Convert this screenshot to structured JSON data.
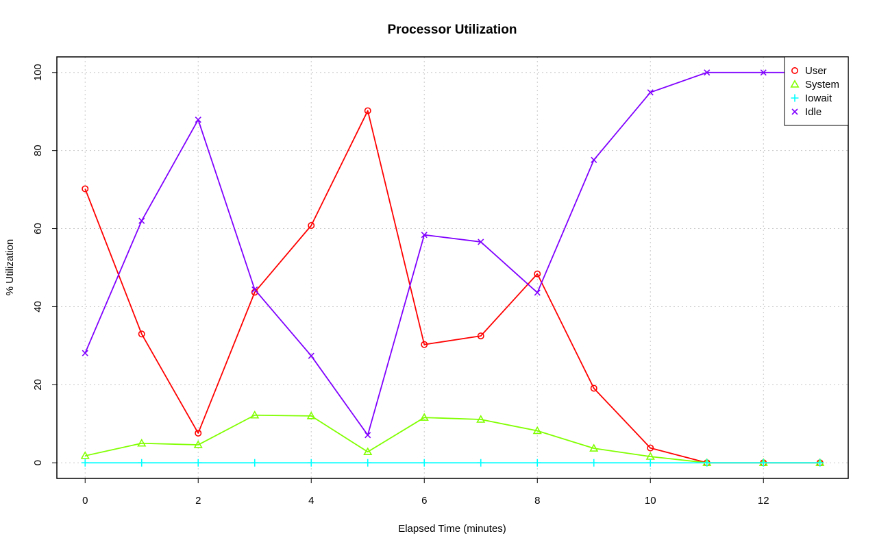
{
  "chart_data": {
    "type": "line",
    "title": "Processor Utilization",
    "xlabel": "Elapsed Time (minutes)",
    "ylabel": "% Utilization",
    "x": [
      0,
      1,
      2,
      3,
      4,
      5,
      6,
      7,
      8,
      9,
      10,
      11,
      12,
      13
    ],
    "xlim": [
      -0.5,
      13.5
    ],
    "ylim": [
      -4,
      104
    ],
    "xticks": [
      0,
      2,
      4,
      6,
      8,
      10,
      12
    ],
    "yticks": [
      0,
      20,
      40,
      60,
      80,
      100
    ],
    "grid": true,
    "legend_position": "top-right",
    "series": [
      {
        "name": "User",
        "color": "#ff0000",
        "marker": "circle",
        "values": [
          70.2,
          33.0,
          7.6,
          43.7,
          60.8,
          90.2,
          30.3,
          32.5,
          48.4,
          19.1,
          3.8,
          0.0,
          0.0,
          0.0
        ]
      },
      {
        "name": "System",
        "color": "#80ff00",
        "marker": "triangle",
        "values": [
          1.8,
          5.0,
          4.6,
          12.2,
          12.0,
          2.8,
          11.6,
          11.1,
          8.2,
          3.7,
          1.6,
          0.0,
          0.0,
          0.0
        ]
      },
      {
        "name": "Iowait",
        "color": "#00ffff",
        "marker": "plus",
        "values": [
          0.0,
          0.0,
          0.0,
          0.0,
          0.0,
          0.0,
          0.0,
          0.0,
          0.0,
          0.0,
          0.0,
          0.0,
          0.0,
          0.0
        ]
      },
      {
        "name": "Idle",
        "color": "#8000ff",
        "marker": "cross",
        "values": [
          28.1,
          62.0,
          87.9,
          44.4,
          27.4,
          7.1,
          58.4,
          56.6,
          43.6,
          77.6,
          94.9,
          100.0,
          100.0,
          100.0
        ]
      }
    ]
  }
}
